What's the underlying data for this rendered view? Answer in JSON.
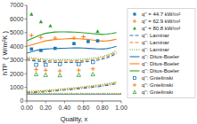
{
  "chart_data": {
    "type": "line",
    "xlabel": "Quality, x",
    "ylabel": "hTP  ( W/m²K )",
    "xlim": [
      0.0,
      1.0
    ],
    "ylim": [
      0,
      7000
    ],
    "xticks": [
      {
        "value": 0.0,
        "label": "0.00"
      },
      {
        "value": 0.2,
        "label": "0.20"
      },
      {
        "value": 0.4,
        "label": "0.40"
      },
      {
        "value": 0.6,
        "label": "0.60"
      },
      {
        "value": 0.8,
        "label": "0.80"
      },
      {
        "value": 1.0,
        "label": "1.00"
      }
    ],
    "yticks": [
      0,
      1000,
      2000,
      3000,
      4000,
      5000,
      6000,
      7000
    ],
    "grid": false,
    "legend": "right",
    "series": [
      {
        "name": "q'' = 44.7 kW/m²",
        "type": "scatter",
        "marker": "square",
        "x": [
          0.05,
          0.15,
          0.3,
          0.5,
          0.65,
          0.75
        ],
        "values": [
          3800,
          3700,
          3850,
          4200,
          4350,
          4400
        ]
      },
      {
        "name": "q'' = 62.9 kW/m²",
        "type": "scatter",
        "marker": "plus",
        "x": [
          0.05,
          0.15,
          0.3,
          0.5,
          0.6
        ],
        "values": [
          4800,
          4650,
          4600,
          4600,
          4700
        ]
      },
      {
        "name": "q'' = 80.8 kW/m²",
        "type": "scatter",
        "marker": "triangle",
        "x": [
          0.05,
          0.15,
          0.25,
          0.75
        ],
        "values": [
          6350,
          5800,
          5500,
          5100
        ]
      },
      {
        "name": "q'': Laminar",
        "type": "line",
        "line_style": "dashed",
        "x": [
          0.0,
          0.05,
          0.1,
          0.15,
          0.2,
          0.25,
          0.3,
          0.35,
          0.4,
          0.45,
          0.5,
          0.55,
          0.6,
          0.65,
          0.7,
          0.75,
          0.8,
          0.85,
          0.9,
          0.95
        ],
        "values": [
          3000,
          2960,
          2920,
          2890,
          2860,
          2840,
          2830,
          2820,
          2820,
          2820,
          2830,
          2840,
          2860,
          2890,
          2930,
          2980,
          3060,
          3160,
          3300,
          3480
        ]
      },
      {
        "name": "q'': Laminar",
        "type": "line",
        "line_style": "dashed",
        "x": [
          0.0,
          0.05,
          0.1,
          0.15,
          0.2,
          0.25,
          0.3,
          0.35,
          0.4,
          0.45,
          0.5,
          0.55,
          0.6,
          0.65,
          0.7,
          0.75,
          0.8,
          0.85,
          0.9,
          0.95
        ],
        "values": [
          3100,
          3060,
          3020,
          2990,
          2960,
          2940,
          2930,
          2920,
          2920,
          2920,
          2930,
          2940,
          2960,
          2990,
          3030,
          3080,
          3160,
          3260,
          3400,
          3580
        ]
      },
      {
        "name": "q'': Laminar",
        "type": "line",
        "line_style": "dotted",
        "x": [
          0.0,
          0.05,
          0.1,
          0.15,
          0.2,
          0.25,
          0.3,
          0.35,
          0.4,
          0.45,
          0.5,
          0.55,
          0.6,
          0.65,
          0.7,
          0.75,
          0.8,
          0.85,
          0.9,
          0.95
        ],
        "values": [
          3200,
          3160,
          3120,
          3090,
          3060,
          3040,
          3030,
          3020,
          3020,
          3020,
          3030,
          3040,
          3060,
          3090,
          3130,
          3180,
          3260,
          3360,
          3500,
          3680
        ]
      },
      {
        "name": "q'': Ditus-Boeler",
        "type": "line",
        "line_style": "solid",
        "x": [
          0.0,
          0.05,
          0.1,
          0.15,
          0.2,
          0.25,
          0.3,
          0.35,
          0.4,
          0.45,
          0.5,
          0.55,
          0.6,
          0.65,
          0.7,
          0.75,
          0.8,
          0.85,
          0.9,
          0.95
        ],
        "values": [
          3500,
          3600,
          3700,
          3750,
          3800,
          3820,
          3840,
          3850,
          3860,
          3870,
          3880,
          3880,
          3870,
          3850,
          3830,
          3810,
          3800,
          3830,
          3900,
          4000
        ]
      },
      {
        "name": "q'': Ditus-Boeler",
        "type": "line",
        "line_style": "solid",
        "x": [
          0.0,
          0.05,
          0.1,
          0.15,
          0.2,
          0.25,
          0.3,
          0.35,
          0.4,
          0.45,
          0.5,
          0.55,
          0.6,
          0.65,
          0.7,
          0.75,
          0.8,
          0.85,
          0.9,
          0.95
        ],
        "values": [
          4000,
          4100,
          4200,
          4300,
          4400,
          4450,
          4500,
          4520,
          4540,
          4560,
          4560,
          4550,
          4530,
          4500,
          4460,
          4420,
          4380,
          4400,
          4450,
          4520
        ]
      },
      {
        "name": "q'': Ditus-Boeler",
        "type": "line",
        "line_style": "solid",
        "x": [
          0.0,
          0.05,
          0.1,
          0.15,
          0.2,
          0.25,
          0.3,
          0.35,
          0.4,
          0.45,
          0.5,
          0.55,
          0.6,
          0.65,
          0.7,
          0.75,
          0.8,
          0.85,
          0.9,
          0.95
        ],
        "values": [
          4400,
          4550,
          4700,
          4850,
          4950,
          5000,
          5050,
          5060,
          5060,
          5050,
          5040,
          5020,
          4990,
          4960,
          4930,
          4900,
          4870,
          4890,
          4940,
          5010
        ]
      },
      {
        "name": "q'': Gnielinski",
        "type": "scatter",
        "marker": "open-square",
        "x": [
          0.1,
          0.2,
          0.35,
          0.55,
          0.7
        ],
        "values": [
          2650,
          2650,
          2700,
          2700,
          2850
        ]
      },
      {
        "name": "q'': Gnielinski",
        "type": "scatter",
        "marker": "plus",
        "x": [
          0.1,
          0.2,
          0.35,
          0.55,
          0.7
        ],
        "values": [
          2300,
          2250,
          2200,
          2250,
          2350
        ]
      },
      {
        "name": "q'': Gnielinski",
        "type": "scatter",
        "marker": "open-triangle",
        "x": [
          0.1,
          0.2,
          0.35,
          0.55,
          0.7
        ],
        "values": [
          1950,
          1900,
          1880,
          1900,
          1950
        ]
      },
      {
        "type": "line",
        "line_style": "dashdot",
        "x": [
          0.0,
          0.05,
          0.1,
          0.15,
          0.2,
          0.25,
          0.3,
          0.35,
          0.4,
          0.45,
          0.5,
          0.55,
          0.6,
          0.65,
          0.7,
          0.75,
          0.8,
          0.85,
          0.9,
          0.95
        ],
        "values": [
          600,
          610,
          630,
          650,
          680,
          700,
          730,
          760,
          790,
          820,
          860,
          890,
          930,
          960,
          1000,
          1040,
          1090,
          1140,
          1200,
          1260
        ]
      },
      {
        "type": "line",
        "line_style": "dashdot",
        "x": [
          0.0,
          0.05,
          0.1,
          0.15,
          0.2,
          0.25,
          0.3,
          0.35,
          0.4,
          0.45,
          0.5,
          0.55,
          0.6,
          0.65,
          0.7,
          0.75,
          0.8,
          0.85,
          0.9,
          0.95
        ],
        "values": [
          650,
          660,
          680,
          700,
          730,
          755,
          780,
          810,
          840,
          875,
          910,
          945,
          985,
          1020,
          1060,
          1100,
          1150,
          1200,
          1260,
          1320
        ]
      },
      {
        "type": "line",
        "line_style": "dotted",
        "x": [
          0.0,
          0.05,
          0.1,
          0.15,
          0.2,
          0.25,
          0.3,
          0.35,
          0.4,
          0.45,
          0.5,
          0.55,
          0.6,
          0.65,
          0.7,
          0.75,
          0.8,
          0.85,
          0.9,
          0.95
        ],
        "values": [
          700,
          710,
          730,
          750,
          780,
          810,
          835,
          865,
          900,
          930,
          965,
          1000,
          1040,
          1080,
          1120,
          1160,
          1210,
          1260,
          1320,
          1380
        ]
      },
      {
        "type": "hline",
        "line_style": "solid",
        "values": [
          480
        ]
      },
      {
        "type": "hline",
        "line_style": "dashed",
        "values": [
          520
        ]
      },
      {
        "type": "hline",
        "line_style": "dotted",
        "values": [
          560
        ]
      }
    ]
  }
}
